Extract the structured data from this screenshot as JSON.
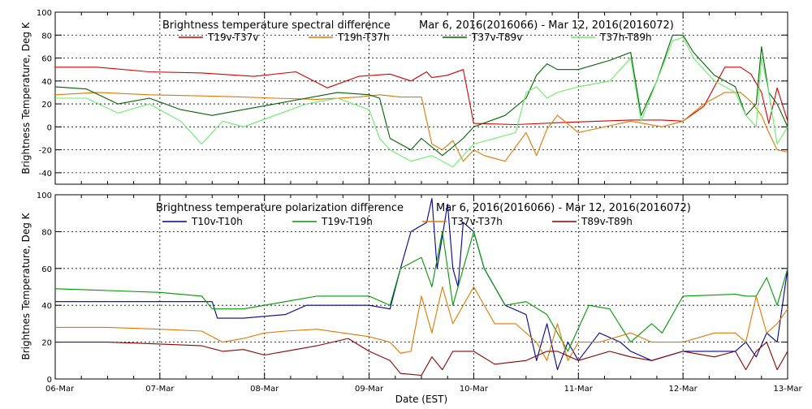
{
  "chart_data": [
    {
      "type": "line",
      "title": "Brightness temperature spectral difference",
      "date_range": "Mar  6, 2016(2016066) - Mar 12, 2016(2016072)",
      "ylabel": "Brightness Temperature, Deg K",
      "ylim": [
        -50,
        100
      ],
      "yticks": [
        -40,
        -20,
        0,
        20,
        40,
        60,
        80,
        100
      ],
      "xlim": [
        0,
        7
      ],
      "grid": true,
      "legend_position": "top",
      "series": [
        {
          "name": "T19v-T37v",
          "color": "#d40000",
          "x": [
            0,
            0.4,
            0.9,
            1.4,
            1.9,
            2.3,
            2.6,
            2.9,
            3.2,
            3.4,
            3.55,
            3.6,
            3.75,
            3.9,
            4.0,
            4.4,
            4.9,
            5.5,
            5.8,
            6.0,
            6.2,
            6.4,
            6.55,
            6.65,
            6.75,
            6.82,
            6.9,
            7.0
          ],
          "y": [
            52,
            52,
            48,
            47,
            44,
            48,
            34,
            44,
            46,
            40,
            48,
            43,
            45,
            50,
            3,
            2,
            4,
            6,
            6,
            5,
            18,
            52,
            52,
            46,
            30,
            3,
            34,
            5
          ]
        },
        {
          "name": "T19h-T37h",
          "color": "#e07800",
          "x": [
            0,
            0.4,
            0.9,
            1.4,
            1.8,
            2.1,
            2.5,
            2.9,
            3.1,
            3.3,
            3.5,
            3.6,
            3.7,
            3.8,
            3.9,
            4.0,
            4.1,
            4.3,
            4.5,
            4.6,
            4.7,
            4.8,
            5.0,
            5.5,
            5.8,
            6.0,
            6.2,
            6.4,
            6.55,
            6.65,
            6.75,
            6.82,
            6.9,
            7.0
          ],
          "y": [
            28,
            30,
            28,
            27,
            26,
            25,
            24,
            26,
            28,
            26,
            26,
            -15,
            -20,
            -12,
            -30,
            -20,
            -25,
            -30,
            -5,
            -25,
            -2,
            10,
            -5,
            5,
            0,
            5,
            20,
            30,
            30,
            22,
            10,
            -5,
            -20,
            -22
          ]
        },
        {
          "name": "T37v-T89v",
          "color": "#006400",
          "x": [
            0,
            0.3,
            0.6,
            0.9,
            1.2,
            1.5,
            1.8,
            2.1,
            2.4,
            2.7,
            3.0,
            3.1,
            3.2,
            3.4,
            3.5,
            3.7,
            3.9,
            4.0,
            4.3,
            4.5,
            4.6,
            4.7,
            4.8,
            5.0,
            5.3,
            5.5,
            5.6,
            5.75,
            5.9,
            6.0,
            6.1,
            6.3,
            6.5,
            6.6,
            6.7,
            6.75,
            6.82,
            6.9,
            7.0
          ],
          "y": [
            35,
            33,
            20,
            25,
            15,
            10,
            15,
            20,
            25,
            30,
            28,
            25,
            -10,
            -20,
            -10,
            -25,
            -10,
            0,
            10,
            25,
            45,
            55,
            50,
            50,
            58,
            65,
            10,
            40,
            80,
            80,
            65,
            45,
            35,
            10,
            20,
            70,
            30,
            20,
            0
          ]
        },
        {
          "name": "T37h-T89h",
          "color": "#66ee66",
          "x": [
            0,
            0.3,
            0.6,
            0.9,
            1.2,
            1.4,
            1.6,
            1.8,
            2.1,
            2.4,
            2.7,
            3.0,
            3.1,
            3.2,
            3.4,
            3.6,
            3.8,
            4.0,
            4.2,
            4.4,
            4.5,
            4.6,
            4.7,
            4.8,
            5.0,
            5.3,
            5.5,
            5.6,
            5.75,
            5.9,
            6.0,
            6.1,
            6.3,
            6.5,
            6.6,
            6.7,
            6.75,
            6.82,
            6.9,
            7.0
          ],
          "y": [
            25,
            25,
            12,
            20,
            5,
            -15,
            5,
            0,
            10,
            20,
            25,
            15,
            -10,
            -20,
            -30,
            -25,
            -35,
            -15,
            -10,
            -5,
            30,
            35,
            25,
            30,
            35,
            40,
            60,
            5,
            40,
            75,
            78,
            60,
            40,
            30,
            10,
            0,
            60,
            30,
            -15,
            0
          ]
        }
      ]
    },
    {
      "type": "line",
      "title": "Brightness temperature polarization difference",
      "date_range": "Mar  6, 2016(2016066) - Mar 12, 2016(2016072)",
      "ylabel": "Brightnes Temperature, Deg K",
      "xlabel": "Date (EST)",
      "ylim": [
        0,
        100
      ],
      "yticks": [
        0,
        20,
        40,
        60,
        80,
        100
      ],
      "xlim": [
        0,
        7
      ],
      "xticks": [
        "06-Mar",
        "07-Mar",
        "08-Mar",
        "09-Mar",
        "10-Mar",
        "11-Mar",
        "12-Mar",
        "13-Mar"
      ],
      "grid": true,
      "legend_position": "top",
      "series": [
        {
          "name": "T10v-T10h",
          "color": "#000099",
          "x": [
            0,
            0.5,
            1.0,
            1.4,
            1.5,
            1.55,
            1.8,
            2.0,
            2.2,
            2.4,
            2.7,
            3.0,
            3.2,
            3.3,
            3.4,
            3.55,
            3.6,
            3.65,
            3.75,
            3.8,
            3.85,
            3.9,
            4.0,
            4.1,
            4.3,
            4.5,
            4.6,
            4.7,
            4.8,
            4.9,
            5.0,
            5.2,
            5.4,
            5.5,
            5.7,
            6.0,
            6.3,
            6.5,
            6.6,
            6.7,
            6.8,
            6.9,
            7.0
          ],
          "y": [
            42,
            42,
            42,
            42,
            42,
            33,
            33,
            34,
            35,
            40,
            40,
            40,
            38,
            60,
            80,
            85,
            98,
            60,
            95,
            60,
            50,
            85,
            80,
            60,
            40,
            35,
            10,
            30,
            5,
            20,
            10,
            25,
            20,
            15,
            10,
            15,
            15,
            15,
            20,
            12,
            25,
            20,
            60
          ]
        },
        {
          "name": "T19v-T19h",
          "color": "#009900",
          "x": [
            0,
            0.5,
            1.0,
            1.4,
            1.5,
            1.8,
            2.0,
            2.2,
            2.5,
            3.0,
            3.2,
            3.3,
            3.5,
            3.6,
            3.7,
            3.8,
            3.9,
            4.0,
            4.1,
            4.3,
            4.5,
            4.7,
            4.9,
            5.1,
            5.3,
            5.5,
            5.7,
            5.8,
            6.0,
            6.5,
            6.6,
            6.7,
            6.8,
            6.9,
            7.0
          ],
          "y": [
            49,
            48,
            47,
            45,
            38,
            38,
            40,
            42,
            45,
            45,
            40,
            60,
            66,
            50,
            80,
            40,
            60,
            80,
            60,
            40,
            42,
            35,
            15,
            40,
            38,
            20,
            30,
            25,
            45,
            46,
            45,
            45,
            55,
            40,
            60
          ]
        },
        {
          "name": "T37v-T37h",
          "color": "#e07800",
          "x": [
            0,
            0.5,
            1.0,
            1.4,
            1.6,
            1.8,
            2.0,
            2.2,
            2.5,
            3.0,
            3.2,
            3.3,
            3.4,
            3.5,
            3.6,
            3.7,
            3.8,
            3.9,
            4.0,
            4.2,
            4.4,
            4.6,
            4.7,
            4.8,
            4.9,
            5.0,
            5.2,
            5.5,
            5.7,
            6.0,
            6.3,
            6.5,
            6.6,
            6.7,
            6.8,
            6.9,
            7.0
          ],
          "y": [
            28,
            28,
            27,
            26,
            20,
            22,
            25,
            26,
            27,
            23,
            20,
            14,
            15,
            45,
            25,
            50,
            30,
            40,
            50,
            30,
            30,
            20,
            10,
            30,
            10,
            20,
            20,
            25,
            20,
            20,
            25,
            25,
            20,
            45,
            25,
            30,
            38
          ]
        },
        {
          "name": "T89v-T89h",
          "color": "#8b0000",
          "x": [
            0,
            0.5,
            1.0,
            1.4,
            1.6,
            1.8,
            2.0,
            2.2,
            2.5,
            2.8,
            3.0,
            3.2,
            3.3,
            3.5,
            3.6,
            3.7,
            3.8,
            4.0,
            4.2,
            4.5,
            4.7,
            4.8,
            5.0,
            5.3,
            5.5,
            5.7,
            6.0,
            6.3,
            6.5,
            6.6,
            6.7,
            6.8,
            6.9,
            7.0
          ],
          "y": [
            20,
            20,
            19,
            18,
            15,
            16,
            13,
            15,
            18,
            22,
            15,
            10,
            3,
            2,
            12,
            5,
            15,
            15,
            8,
            10,
            15,
            15,
            10,
            15,
            12,
            10,
            15,
            12,
            15,
            5,
            15,
            20,
            5,
            15
          ]
        }
      ]
    }
  ]
}
